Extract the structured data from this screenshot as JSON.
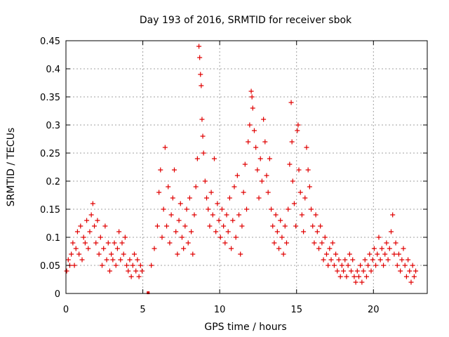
{
  "chart_data": {
    "type": "scatter",
    "title": "Day 193 of 2016, SRMTID for receiver sbok",
    "xlabel": "GPS time / hours",
    "ylabel": "SRMTID / TECUs",
    "xlim": [
      0,
      23.5
    ],
    "ylim": [
      0,
      0.45
    ],
    "xticks": [
      0,
      5,
      10,
      15,
      20
    ],
    "yticks": [
      0,
      0.05,
      0.1,
      0.15,
      0.2,
      0.25,
      0.3,
      0.35,
      0.4,
      0.45
    ],
    "xtick_labels": [
      "0",
      "5",
      "10",
      "15",
      "20"
    ],
    "ytick_labels": [
      "0",
      "0.05",
      "0.1",
      "0.15",
      "0.2",
      "0.25",
      "0.3",
      "0.35",
      "0.4",
      "0.45"
    ],
    "grid": true,
    "marker": "+",
    "marker_color": "#e00000",
    "series": [
      {
        "name": "SRMTID",
        "points": [
          [
            0.05,
            0.04
          ],
          [
            0.15,
            0.06
          ],
          [
            0.25,
            0.05
          ],
          [
            0.35,
            0.07
          ],
          [
            0.45,
            0.09
          ],
          [
            0.55,
            0.05
          ],
          [
            0.65,
            0.08
          ],
          [
            0.75,
            0.11
          ],
          [
            0.85,
            0.07
          ],
          [
            0.95,
            0.12
          ],
          [
            1.05,
            0.06
          ],
          [
            1.15,
            0.1
          ],
          [
            1.25,
            0.09
          ],
          [
            1.35,
            0.13
          ],
          [
            1.45,
            0.08
          ],
          [
            1.55,
            0.11
          ],
          [
            1.65,
            0.14
          ],
          [
            1.75,
            0.16
          ],
          [
            1.85,
            0.12
          ],
          [
            1.95,
            0.09
          ],
          [
            2.05,
            0.13
          ],
          [
            2.15,
            0.07
          ],
          [
            2.25,
            0.1
          ],
          [
            2.35,
            0.05
          ],
          [
            2.45,
            0.08
          ],
          [
            2.55,
            0.12
          ],
          [
            2.65,
            0.06
          ],
          [
            2.75,
            0.09
          ],
          [
            2.85,
            0.04
          ],
          [
            2.95,
            0.07
          ],
          [
            3.05,
            0.06
          ],
          [
            3.15,
            0.09
          ],
          [
            3.25,
            0.05
          ],
          [
            3.35,
            0.08
          ],
          [
            3.45,
            0.11
          ],
          [
            3.55,
            0.06
          ],
          [
            3.65,
            0.09
          ],
          [
            3.75,
            0.07
          ],
          [
            3.85,
            0.1
          ],
          [
            3.95,
            0.05
          ],
          [
            4.05,
            0.04
          ],
          [
            4.15,
            0.06
          ],
          [
            4.25,
            0.03
          ],
          [
            4.35,
            0.05
          ],
          [
            4.45,
            0.07
          ],
          [
            4.55,
            0.04
          ],
          [
            4.65,
            0.06
          ],
          [
            4.75,
            0.03
          ],
          [
            4.85,
            0.05
          ],
          [
            4.95,
            0.04
          ],
          [
            5.35,
            0.0
          ],
          [
            5.55,
            0.05
          ],
          [
            5.75,
            0.08
          ],
          [
            5.95,
            0.12
          ],
          [
            6.05,
            0.18
          ],
          [
            6.15,
            0.22
          ],
          [
            6.25,
            0.1
          ],
          [
            6.35,
            0.15
          ],
          [
            6.45,
            0.26
          ],
          [
            6.55,
            0.12
          ],
          [
            6.65,
            0.19
          ],
          [
            6.75,
            0.09
          ],
          [
            6.85,
            0.14
          ],
          [
            6.95,
            0.17
          ],
          [
            7.05,
            0.22
          ],
          [
            7.15,
            0.11
          ],
          [
            7.25,
            0.07
          ],
          [
            7.35,
            0.13
          ],
          [
            7.45,
            0.16
          ],
          [
            7.55,
            0.1
          ],
          [
            7.65,
            0.08
          ],
          [
            7.75,
            0.12
          ],
          [
            7.85,
            0.15
          ],
          [
            7.95,
            0.09
          ],
          [
            8.05,
            0.17
          ],
          [
            8.15,
            0.11
          ],
          [
            8.25,
            0.07
          ],
          [
            8.35,
            0.14
          ],
          [
            8.45,
            0.19
          ],
          [
            8.55,
            0.24
          ],
          [
            8.65,
            0.44
          ],
          [
            8.7,
            0.42
          ],
          [
            8.75,
            0.39
          ],
          [
            8.8,
            0.37
          ],
          [
            8.85,
            0.31
          ],
          [
            8.9,
            0.28
          ],
          [
            8.95,
            0.25
          ],
          [
            9.05,
            0.2
          ],
          [
            9.15,
            0.17
          ],
          [
            9.25,
            0.15
          ],
          [
            9.35,
            0.12
          ],
          [
            9.45,
            0.18
          ],
          [
            9.55,
            0.14
          ],
          [
            9.65,
            0.24
          ],
          [
            9.75,
            0.11
          ],
          [
            9.85,
            0.16
          ],
          [
            9.95,
            0.13
          ],
          [
            10.05,
            0.1
          ],
          [
            10.15,
            0.15
          ],
          [
            10.25,
            0.12
          ],
          [
            10.35,
            0.09
          ],
          [
            10.45,
            0.14
          ],
          [
            10.55,
            0.11
          ],
          [
            10.65,
            0.17
          ],
          [
            10.75,
            0.08
          ],
          [
            10.85,
            0.13
          ],
          [
            10.95,
            0.19
          ],
          [
            11.05,
            0.1
          ],
          [
            11.15,
            0.21
          ],
          [
            11.25,
            0.14
          ],
          [
            11.35,
            0.07
          ],
          [
            11.45,
            0.12
          ],
          [
            11.55,
            0.18
          ],
          [
            11.65,
            0.23
          ],
          [
            11.75,
            0.15
          ],
          [
            11.85,
            0.27
          ],
          [
            11.95,
            0.3
          ],
          [
            12.05,
            0.36
          ],
          [
            12.1,
            0.35
          ],
          [
            12.15,
            0.33
          ],
          [
            12.25,
            0.29
          ],
          [
            12.35,
            0.26
          ],
          [
            12.45,
            0.22
          ],
          [
            12.55,
            0.17
          ],
          [
            12.65,
            0.24
          ],
          [
            12.75,
            0.2
          ],
          [
            12.85,
            0.31
          ],
          [
            12.95,
            0.27
          ],
          [
            13.05,
            0.21
          ],
          [
            13.15,
            0.18
          ],
          [
            13.25,
            0.24
          ],
          [
            13.35,
            0.15
          ],
          [
            13.45,
            0.12
          ],
          [
            13.55,
            0.09
          ],
          [
            13.65,
            0.14
          ],
          [
            13.75,
            0.11
          ],
          [
            13.85,
            0.08
          ],
          [
            13.95,
            0.13
          ],
          [
            14.05,
            0.1
          ],
          [
            14.15,
            0.07
          ],
          [
            14.25,
            0.12
          ],
          [
            14.35,
            0.09
          ],
          [
            14.45,
            0.15
          ],
          [
            14.55,
            0.23
          ],
          [
            14.65,
            0.34
          ],
          [
            14.7,
            0.27
          ],
          [
            14.75,
            0.2
          ],
          [
            14.85,
            0.16
          ],
          [
            14.95,
            0.12
          ],
          [
            15.05,
            0.29
          ],
          [
            15.1,
            0.3
          ],
          [
            15.15,
            0.22
          ],
          [
            15.25,
            0.18
          ],
          [
            15.35,
            0.14
          ],
          [
            15.45,
            0.11
          ],
          [
            15.55,
            0.17
          ],
          [
            15.65,
            0.26
          ],
          [
            15.75,
            0.22
          ],
          [
            15.85,
            0.19
          ],
          [
            15.95,
            0.15
          ],
          [
            16.05,
            0.12
          ],
          [
            16.15,
            0.09
          ],
          [
            16.25,
            0.14
          ],
          [
            16.35,
            0.11
          ],
          [
            16.45,
            0.08
          ],
          [
            16.55,
            0.12
          ],
          [
            16.65,
            0.09
          ],
          [
            16.75,
            0.06
          ],
          [
            16.85,
            0.1
          ],
          [
            16.95,
            0.07
          ],
          [
            17.05,
            0.05
          ],
          [
            17.15,
            0.08
          ],
          [
            17.25,
            0.06
          ],
          [
            17.35,
            0.09
          ],
          [
            17.45,
            0.05
          ],
          [
            17.55,
            0.07
          ],
          [
            17.65,
            0.04
          ],
          [
            17.75,
            0.06
          ],
          [
            17.85,
            0.03
          ],
          [
            17.95,
            0.05
          ],
          [
            18.05,
            0.04
          ],
          [
            18.15,
            0.06
          ],
          [
            18.25,
            0.03
          ],
          [
            18.35,
            0.05
          ],
          [
            18.45,
            0.07
          ],
          [
            18.55,
            0.04
          ],
          [
            18.65,
            0.06
          ],
          [
            18.75,
            0.03
          ],
          [
            18.85,
            0.02
          ],
          [
            18.95,
            0.04
          ],
          [
            19.05,
            0.03
          ],
          [
            19.15,
            0.05
          ],
          [
            19.25,
            0.02
          ],
          [
            19.35,
            0.04
          ],
          [
            19.45,
            0.06
          ],
          [
            19.55,
            0.03
          ],
          [
            19.65,
            0.05
          ],
          [
            19.75,
            0.07
          ],
          [
            19.85,
            0.04
          ],
          [
            19.95,
            0.06
          ],
          [
            20.05,
            0.08
          ],
          [
            20.15,
            0.05
          ],
          [
            20.25,
            0.07
          ],
          [
            20.35,
            0.1
          ],
          [
            20.45,
            0.06
          ],
          [
            20.55,
            0.08
          ],
          [
            20.65,
            0.05
          ],
          [
            20.75,
            0.07
          ],
          [
            20.85,
            0.09
          ],
          [
            20.95,
            0.06
          ],
          [
            21.05,
            0.08
          ],
          [
            21.15,
            0.11
          ],
          [
            21.25,
            0.14
          ],
          [
            21.35,
            0.07
          ],
          [
            21.45,
            0.09
          ],
          [
            21.55,
            0.05
          ],
          [
            21.65,
            0.07
          ],
          [
            21.75,
            0.04
          ],
          [
            21.85,
            0.06
          ],
          [
            21.95,
            0.08
          ],
          [
            22.05,
            0.05
          ],
          [
            22.15,
            0.03
          ],
          [
            22.25,
            0.06
          ],
          [
            22.35,
            0.04
          ],
          [
            22.45,
            0.02
          ],
          [
            22.55,
            0.05
          ],
          [
            22.65,
            0.03
          ],
          [
            22.75,
            0.04
          ]
        ]
      }
    ]
  }
}
